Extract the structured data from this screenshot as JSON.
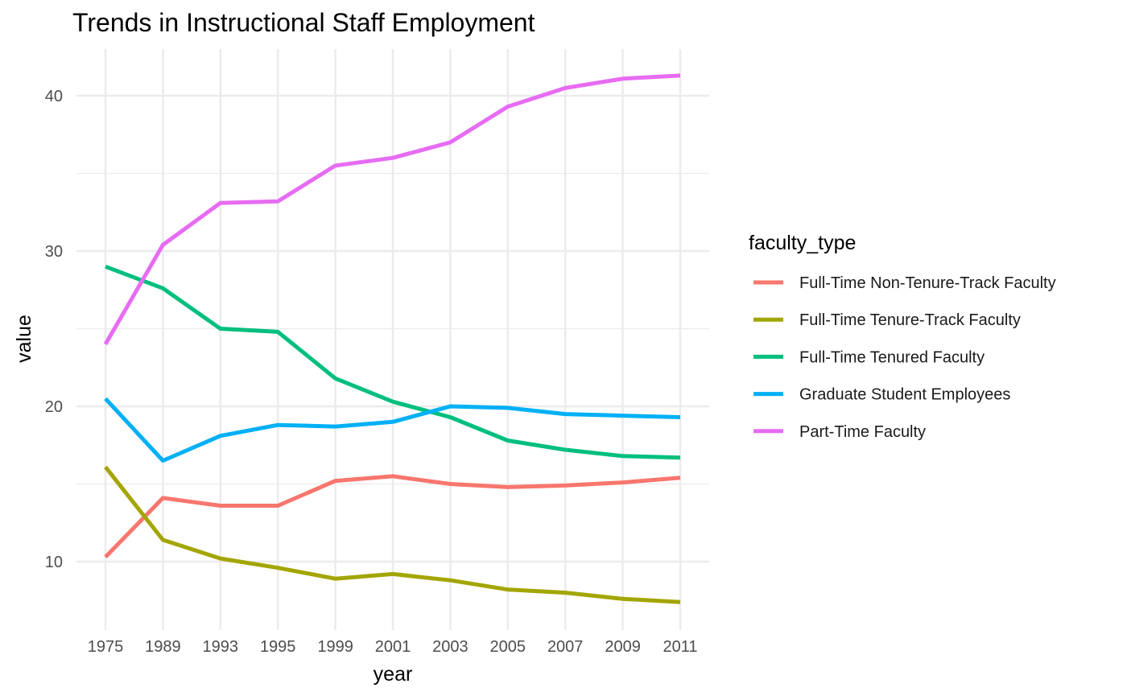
{
  "chart_data": {
    "type": "line",
    "title": "Trends in Instructional Staff Employment",
    "xlabel": "year",
    "ylabel": "value",
    "legend_title": "faculty_type",
    "legend_position": "right",
    "grid": true,
    "categories": [
      "1975",
      "1989",
      "1993",
      "1995",
      "1999",
      "2001",
      "2003",
      "2005",
      "2007",
      "2009",
      "2011"
    ],
    "y_ticks": [
      10,
      20,
      30,
      40
    ],
    "ylim": [
      5.9,
      43.0
    ],
    "series": [
      {
        "name": "Full-Time Non-Tenure-Track Faculty",
        "color": "#F8766D",
        "values": [
          10.3,
          14.1,
          13.6,
          13.6,
          15.2,
          15.5,
          15.0,
          14.8,
          14.9,
          15.1,
          15.4
        ]
      },
      {
        "name": "Full-Time Tenure-Track Faculty",
        "color": "#A3A500",
        "values": [
          16.1,
          11.4,
          10.2,
          9.6,
          8.9,
          9.2,
          8.8,
          8.2,
          8.0,
          7.6,
          7.4
        ]
      },
      {
        "name": "Full-Time Tenured Faculty",
        "color": "#00BF7D",
        "values": [
          29.0,
          27.6,
          25.0,
          24.8,
          21.8,
          20.3,
          19.3,
          17.8,
          17.2,
          16.8,
          16.7
        ]
      },
      {
        "name": "Graduate Student Employees",
        "color": "#00B0F6",
        "values": [
          20.5,
          16.5,
          18.1,
          18.8,
          18.7,
          19.0,
          20.0,
          19.9,
          19.5,
          19.4,
          19.3
        ]
      },
      {
        "name": "Part-Time Faculty",
        "color": "#E76BF3",
        "values": [
          24.0,
          30.4,
          33.1,
          33.2,
          35.5,
          36.0,
          37.0,
          39.3,
          40.5,
          41.1,
          41.3
        ]
      }
    ]
  }
}
